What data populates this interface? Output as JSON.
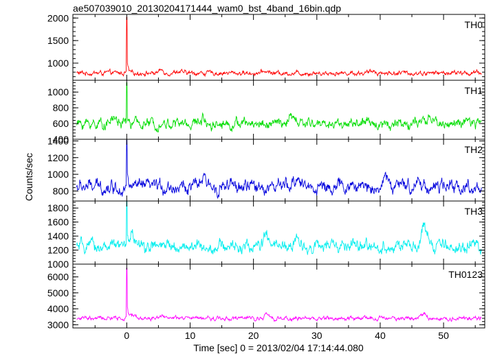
{
  "chart_data": {
    "type": "line",
    "title": "ae507039010_20130204171444_wam0_bst_4band_16bin.qdp",
    "xlabel": "Time [sec] 0 = 2013/02/04 17:14:44.080",
    "ylabel": "Counts/sec",
    "xlim": [
      -8.5,
      56.5
    ],
    "x_ticks": [
      0,
      10,
      20,
      30,
      40,
      50
    ],
    "x_tick_labels": [
      "0",
      "10",
      "20",
      "30",
      "40",
      "50"
    ],
    "panels": [
      {
        "name": "TH0",
        "color": "#ff0000",
        "ylim": [
          620,
          2080
        ],
        "y_ticks": [
          1000,
          1500,
          2000
        ],
        "y_tick_labels": [
          "1000",
          "1500",
          "2000"
        ],
        "baseline": 780,
        "noise": 35,
        "peak": 2020,
        "bumps": [
          [
            5.5,
            60
          ],
          [
            8,
            40
          ],
          [
            22,
            40
          ],
          [
            39,
            50
          ]
        ]
      },
      {
        "name": "TH1",
        "color": "#00dd00",
        "ylim": [
          400,
          1150
        ],
        "y_ticks": [
          400,
          600,
          800,
          1000
        ],
        "y_tick_labels": [
          "400",
          "600",
          "800",
          "1000"
        ],
        "baseline": 600,
        "noise": 45,
        "peak": 1120,
        "bumps": [
          [
            -2,
            70
          ],
          [
            12,
            70
          ],
          [
            26,
            80
          ],
          [
            48,
            70
          ]
        ]
      },
      {
        "name": "TH2",
        "color": "#0000dd",
        "ylim": [
          680,
          1420
        ],
        "y_ticks": [
          800,
          1000,
          1200,
          1400
        ],
        "y_tick_labels": [
          "800",
          "1000",
          "1200",
          "1400"
        ],
        "baseline": 850,
        "noise": 55,
        "peak": 1410,
        "bumps": [
          [
            27,
            130
          ],
          [
            41,
            110
          ],
          [
            46,
            90
          ],
          [
            12,
            90
          ]
        ]
      },
      {
        "name": "TH3",
        "color": "#00eeee",
        "ylim": [
          1000,
          1900
        ],
        "y_ticks": [
          1000,
          1200,
          1400,
          1600,
          1800
        ],
        "y_tick_labels": [
          "1000",
          "1200",
          "1400",
          "1600",
          "1800"
        ],
        "baseline": 1250,
        "noise": 60,
        "peak": 1900,
        "bumps": [
          [
            0.8,
            180
          ],
          [
            22,
            140
          ],
          [
            47,
            280
          ],
          [
            27,
            100
          ]
        ]
      },
      {
        "name": "TH0123",
        "color": "#ff00ff",
        "ylim": [
          2800,
          6800
        ],
        "y_ticks": [
          3000,
          4000,
          5000,
          6000
        ],
        "y_tick_labels": [
          "3000",
          "4000",
          "5000",
          "6000"
        ],
        "baseline": 3400,
        "noise": 90,
        "peak": 6550,
        "bumps": [
          [
            5.5,
            250
          ],
          [
            22,
            200
          ],
          [
            47,
            300
          ],
          [
            1,
            250
          ]
        ]
      }
    ],
    "grid": false,
    "legend": "none"
  }
}
